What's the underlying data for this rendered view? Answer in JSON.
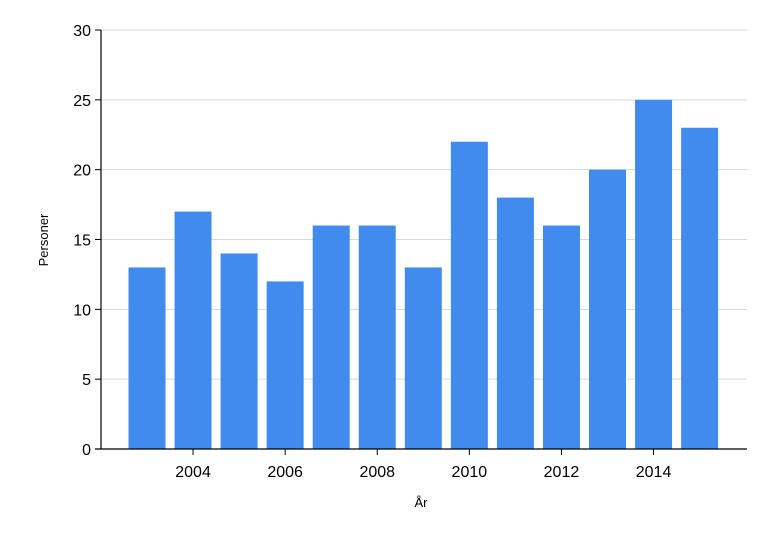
{
  "chart_data": {
    "type": "bar",
    "x": [
      2003,
      2004,
      2005,
      2006,
      2007,
      2008,
      2009,
      2010,
      2011,
      2012,
      2013,
      2014,
      2015
    ],
    "values": [
      13,
      17,
      14,
      12,
      16,
      16,
      13,
      22,
      18,
      16,
      20,
      25,
      23
    ],
    "x_tick_labels": [
      "2004",
      "2006",
      "2008",
      "2010",
      "2012",
      "2014"
    ],
    "y_ticks": [
      0,
      5,
      10,
      15,
      20,
      25,
      30
    ],
    "ylim": [
      0,
      30
    ],
    "xlabel": "År",
    "ylabel": "Personer",
    "grid": true,
    "bar_color": "#418bee",
    "grid_color": "#d9d9d9",
    "axis_color": "#000000"
  }
}
